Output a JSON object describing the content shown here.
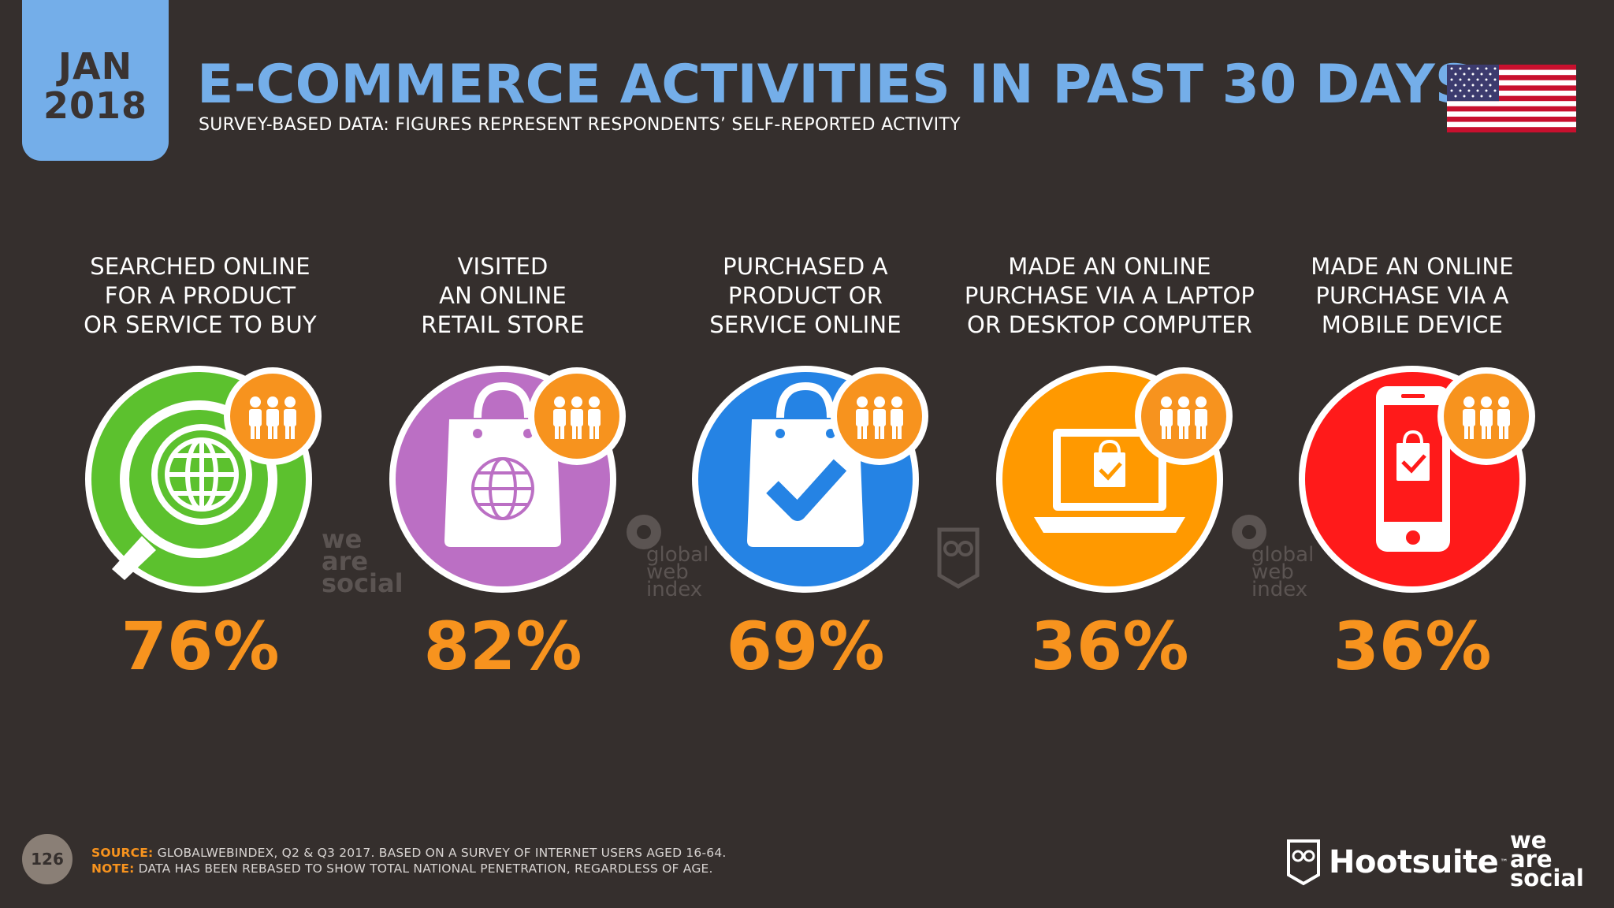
{
  "date_tab": {
    "month": "JAN",
    "year": "2018"
  },
  "header": {
    "title": "E-COMMERCE ACTIVITIES IN PAST 30 DAYS",
    "subtitle": "SURVEY-BASED DATA: FIGURES REPRESENT RESPONDENTS’ SELF-REPORTED ACTIVITY"
  },
  "flag_icon": "us-flag-icon",
  "colors": {
    "background": "#352f2d",
    "accent_blue": "#74aee9",
    "value_orange": "#f7931e",
    "green": "#5cc12e",
    "purple": "#bb6fc4",
    "blue": "#2583e4",
    "orange": "#ff9900",
    "red": "#ff1a1a"
  },
  "cards": [
    {
      "line1": "SEARCHED ONLINE",
      "line2": "FOR A PRODUCT",
      "line3": "OR SERVICE TO BUY",
      "value": "76%",
      "icon": "globe-magnifier-icon"
    },
    {
      "line1": "VISITED",
      "line2": "AN ONLINE",
      "line3": "RETAIL STORE",
      "value": "82%",
      "icon": "shopping-bag-globe-icon"
    },
    {
      "line1": "PURCHASED A",
      "line2": "PRODUCT OR",
      "line3": "SERVICE ONLINE",
      "value": "69%",
      "icon": "shopping-bag-check-icon"
    },
    {
      "line1": "MADE AN ONLINE",
      "line2": "PURCHASE VIA A LAPTOP",
      "line3": "OR DESKTOP COMPUTER",
      "value": "36%",
      "icon": "laptop-bag-icon"
    },
    {
      "line1": "MADE AN ONLINE",
      "line2": "PURCHASE VIA A",
      "line3": "MOBILE DEVICE",
      "value": "36%",
      "icon": "mobile-bag-icon"
    }
  ],
  "watermarks": {
    "weare": [
      "we",
      "are",
      "social"
    ],
    "gwi": [
      "global",
      "web",
      "index"
    ]
  },
  "footer": {
    "page_number": "126",
    "source_label": "SOURCE:",
    "source_text": "GLOBALWEBINDEX, Q2 & Q3 2017. BASED ON A SURVEY OF INTERNET USERS AGED 16-64.",
    "note_label": "NOTE:",
    "note_text": "DATA HAS BEEN REBASED TO SHOW TOTAL NATIONAL PENETRATION, REGARDLESS OF AGE.",
    "hootsuite": "Hootsuite",
    "hootsuite_tm": "™",
    "weare_logo": [
      "we",
      "are",
      "social"
    ]
  }
}
